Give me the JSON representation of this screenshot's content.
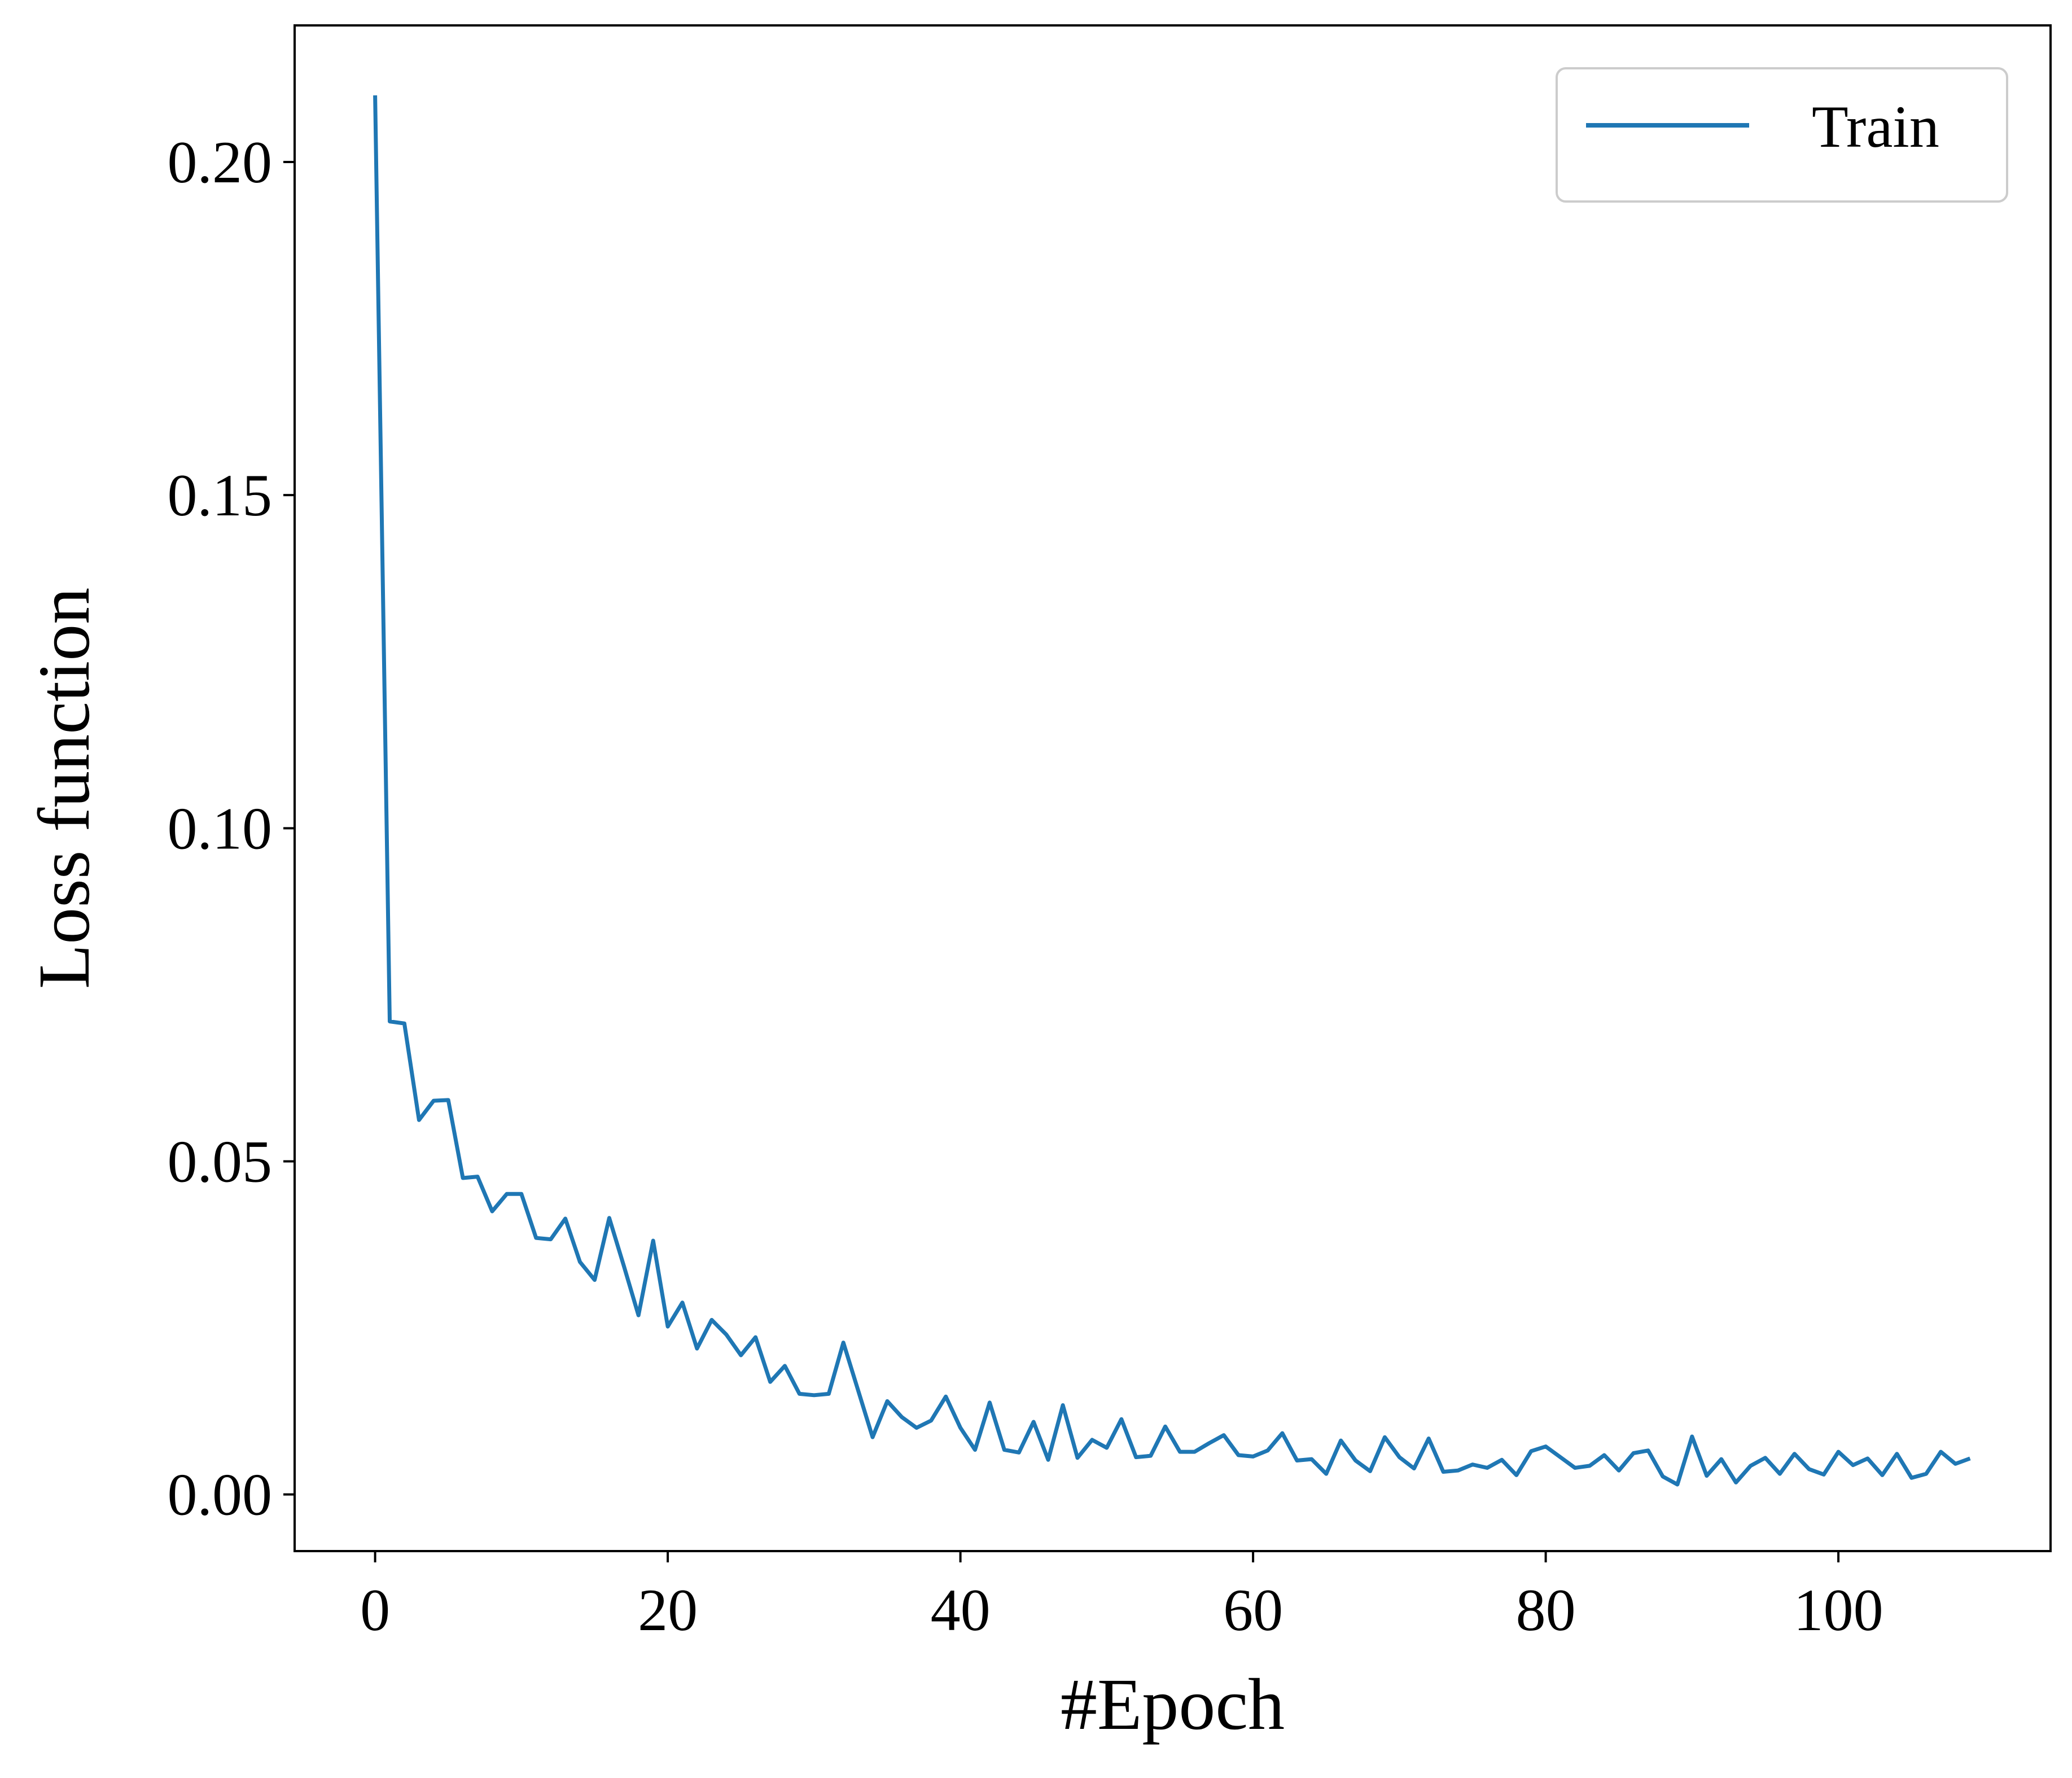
{
  "chart_data": {
    "type": "line",
    "xlabel": "#Epoch",
    "ylabel": "Loss function",
    "xlim": [
      -5.5,
      114.5
    ],
    "ylim": [
      -0.0085,
      0.2205
    ],
    "xticks": [
      0,
      20,
      40,
      60,
      80,
      100
    ],
    "xtick_labels": [
      "0",
      "20",
      "40",
      "60",
      "80",
      "100"
    ],
    "yticks": [
      0.0,
      0.05,
      0.1,
      0.15,
      0.2
    ],
    "ytick_labels": [
      "0.00",
      "0.05",
      "0.10",
      "0.15",
      "0.20"
    ],
    "grid": false,
    "legend_position": "top-right",
    "series": [
      {
        "name": "Train",
        "color": "#1f77b4",
        "x": [
          0,
          1,
          2,
          3,
          4,
          5,
          6,
          7,
          8,
          9,
          10,
          11,
          12,
          13,
          14,
          15,
          16,
          17,
          18,
          19,
          20,
          21,
          22,
          23,
          24,
          25,
          26,
          27,
          28,
          29,
          30,
          31,
          32,
          33,
          34,
          35,
          36,
          37,
          38,
          39,
          40,
          41,
          42,
          43,
          44,
          45,
          46,
          47,
          48,
          49,
          50,
          51,
          52,
          53,
          54,
          55,
          56,
          57,
          58,
          59,
          60,
          61,
          62,
          63,
          64,
          65,
          66,
          67,
          68,
          69,
          70,
          71,
          72,
          73,
          74,
          75,
          76,
          77,
          78,
          79,
          80,
          81,
          82,
          83,
          84,
          85,
          86,
          87,
          88,
          89,
          90,
          91,
          92,
          93,
          94,
          95,
          96,
          97,
          98,
          99,
          100,
          101,
          102,
          103,
          104,
          105,
          106,
          107,
          108,
          109
        ],
        "values": [
          0.21,
          0.071,
          0.0707,
          0.0562,
          0.0591,
          0.0592,
          0.0475,
          0.0477,
          0.0425,
          0.0451,
          0.0451,
          0.0385,
          0.0383,
          0.0414,
          0.0349,
          0.0322,
          0.0415,
          0.0343,
          0.0269,
          0.0381,
          0.0252,
          0.0288,
          0.0219,
          0.0262,
          0.024,
          0.0209,
          0.0236,
          0.0169,
          0.0193,
          0.0151,
          0.0149,
          0.0151,
          0.0228,
          0.0157,
          0.0086,
          0.014,
          0.0116,
          0.01,
          0.0111,
          0.0147,
          0.01,
          0.0067,
          0.0138,
          0.0067,
          0.0063,
          0.0109,
          0.0052,
          0.0134,
          0.0055,
          0.0082,
          0.007,
          0.0113,
          0.0056,
          0.0058,
          0.0102,
          0.0064,
          0.0064,
          0.0077,
          0.0089,
          0.0059,
          0.0057,
          0.0066,
          0.0092,
          0.0051,
          0.0053,
          0.0031,
          0.0081,
          0.0051,
          0.0035,
          0.0086,
          0.0056,
          0.0039,
          0.0084,
          0.0034,
          0.0036,
          0.0045,
          0.004,
          0.0052,
          0.0029,
          0.0065,
          0.0072,
          0.0056,
          0.004,
          0.0043,
          0.0059,
          0.0036,
          0.0062,
          0.0066,
          0.0027,
          0.0015,
          0.0087,
          0.0028,
          0.0053,
          0.0018,
          0.0043,
          0.0055,
          0.0031,
          0.0061,
          0.0038,
          0.003,
          0.0064,
          0.0044,
          0.0054,
          0.0029,
          0.0061,
          0.0025,
          0.0031,
          0.0064,
          0.0046,
          0.0054
        ]
      }
    ]
  }
}
